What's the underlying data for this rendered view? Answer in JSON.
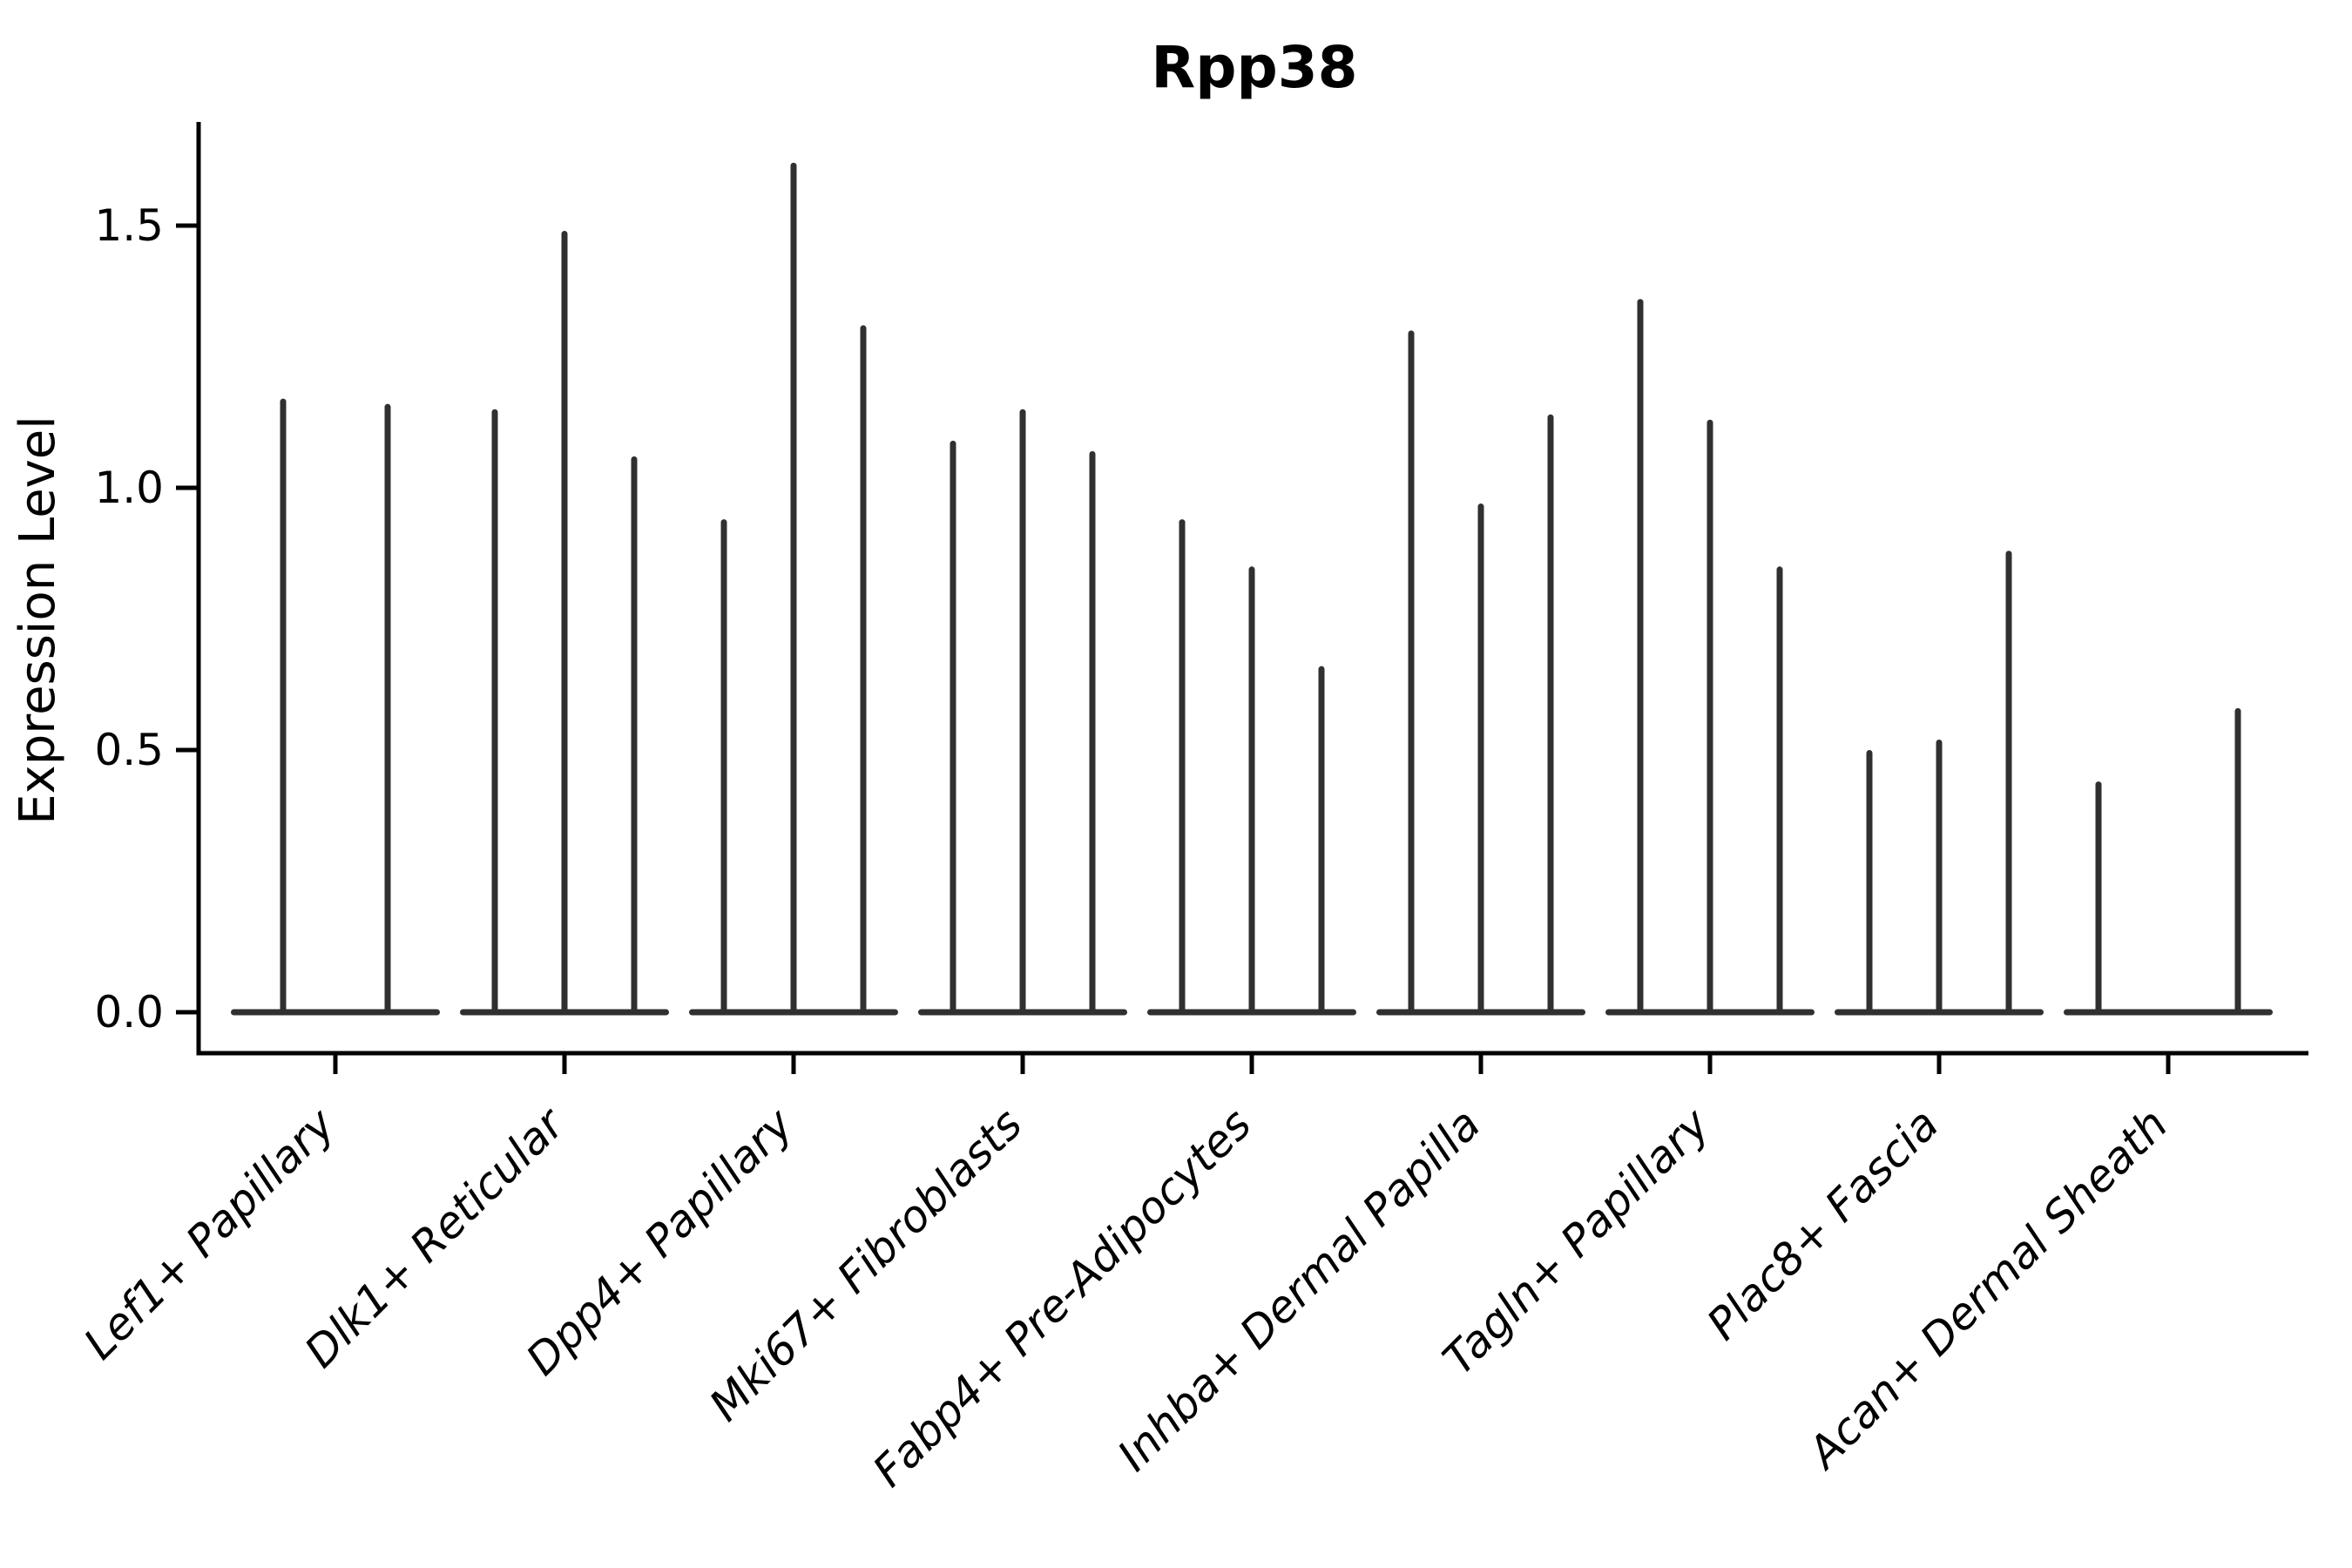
{
  "chart_data": {
    "type": "violin",
    "title": "Rpp38",
    "xlabel": "",
    "ylabel": "Expression Level",
    "ylim": [
      -0.08,
      1.7
    ],
    "yticks": [
      0.0,
      0.5,
      1.0,
      1.5
    ],
    "ytick_labels": [
      "0.0",
      "0.5",
      "1.0",
      "1.5"
    ],
    "legend": "none",
    "grid": false,
    "violin_color": "#303030",
    "axis_color": "#000000",
    "categories": [
      "Lef1+ Papillary",
      "Dlk1+ Reticular",
      "Dpp4+ Papillary",
      "Mki67+ Fibroblasts",
      "Fabp4+ Pre-Adipocytes",
      "Inhba+ Dermal Papilla",
      "Tagln+ Papillary",
      "Plac8+ Fascia",
      "Acan+ Dermal Sheath"
    ],
    "groups": [
      {
        "category": "Lef1+ Papillary",
        "violin_max_values": [
          1.17,
          1.16
        ]
      },
      {
        "category": "Dlk1+ Reticular",
        "violin_max_values": [
          1.15,
          1.49,
          1.06
        ]
      },
      {
        "category": "Dpp4+ Papillary",
        "violin_max_values": [
          0.94,
          1.62,
          1.31
        ]
      },
      {
        "category": "Mki67+ Fibroblasts",
        "violin_max_values": [
          1.09,
          1.15,
          1.07
        ]
      },
      {
        "category": "Fabp4+ Pre-Adipocytes",
        "violin_max_values": [
          0.94,
          0.85,
          0.66
        ]
      },
      {
        "category": "Inhba+ Dermal Papilla",
        "violin_max_values": [
          1.3,
          0.97,
          1.14
        ]
      },
      {
        "category": "Tagln+ Papillary",
        "violin_max_values": [
          1.36,
          1.13,
          0.85
        ]
      },
      {
        "category": "Plac8+ Fascia",
        "violin_max_values": [
          0.5,
          0.52,
          0.88
        ]
      },
      {
        "category": "Acan+ Dermal Sheath",
        "violin_max_values": [
          0.44,
          0.0,
          0.58
        ]
      }
    ]
  }
}
